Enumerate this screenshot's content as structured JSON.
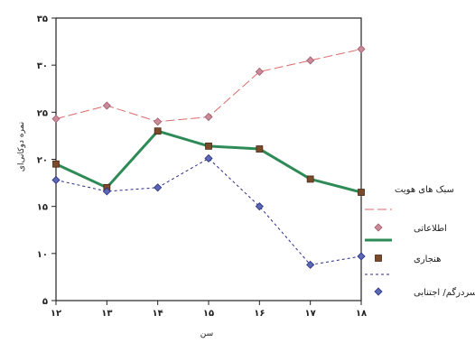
{
  "chart_data": {
    "type": "line",
    "title": "",
    "xlabel": "سن",
    "ylabel": "نمره دوکانی‌ای",
    "x": [
      12,
      13,
      14,
      15,
      16,
      17,
      18
    ],
    "x_tick_labels": [
      "۱۲",
      "۱۳",
      "۱۴",
      "۱۵",
      "۱۶",
      "۱۷",
      "۱۸"
    ],
    "ylim": [
      5,
      35
    ],
    "y_ticks": [
      5,
      10,
      15,
      20,
      25,
      30,
      35
    ],
    "y_tick_labels": [
      "۵",
      "۱۰",
      "۱۵",
      "۲۰",
      "۲۵",
      "۳۰",
      "۳۵"
    ],
    "grid": false,
    "legend_title": "سبک های هویت",
    "legend_position": "right",
    "series": [
      {
        "name": "اطلاعاتی",
        "values": [
          24.3,
          25.7,
          24.0,
          24.5,
          29.3,
          30.5,
          31.7
        ],
        "color": "#d96a6a",
        "line_style": "dashed-long",
        "marker": "diamond",
        "line_width": 1
      },
      {
        "name": "هنجاری",
        "values": [
          19.5,
          17.0,
          23.0,
          21.4,
          21.1,
          17.9,
          16.5
        ],
        "color": "#2e8b57",
        "line_style": "solid",
        "marker": "square",
        "line_width": 3
      },
      {
        "name": "سردرگم/ اجتنابی",
        "values": [
          17.8,
          16.6,
          17.0,
          20.1,
          15.0,
          8.8,
          9.7
        ],
        "color": "#2b2b8a",
        "line_style": "dotted",
        "marker": "circle",
        "line_width": 1
      }
    ]
  }
}
